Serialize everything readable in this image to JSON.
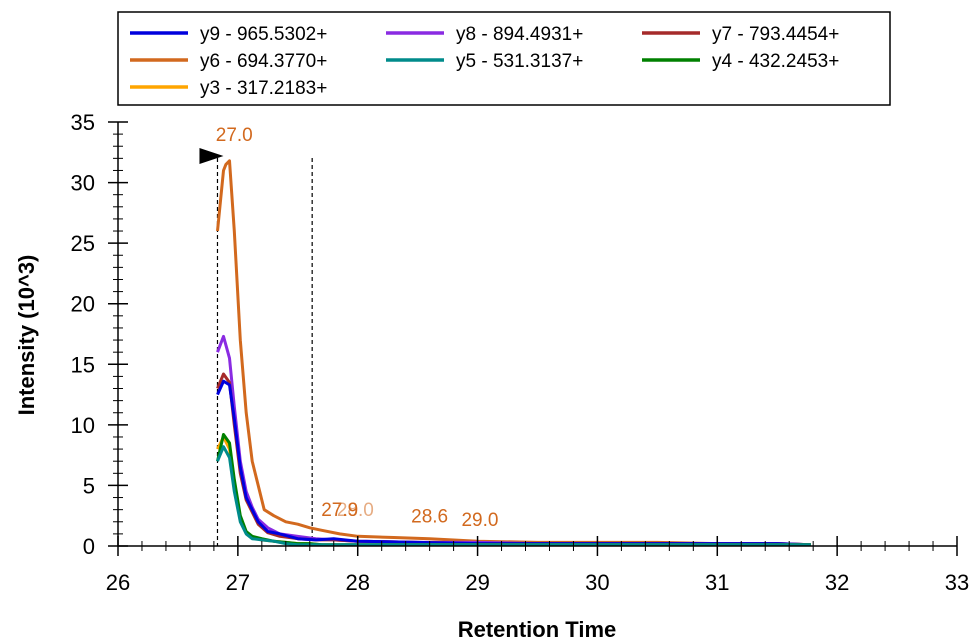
{
  "chart_data": {
    "type": "line",
    "xlabel": "Retention Time",
    "ylabel": "Intensity (10^3)",
    "xlim": [
      26,
      33
    ],
    "ylim": [
      0,
      35
    ],
    "x_ticks": [
      26,
      27,
      28,
      29,
      30,
      31,
      32,
      33
    ],
    "y_ticks": [
      0,
      5,
      10,
      15,
      20,
      25,
      30,
      35
    ],
    "grid": false,
    "legend_placement": "top",
    "boundaries": [
      26.83,
      27.62
    ],
    "peak_marker_rt": 26.83,
    "series": [
      {
        "name": "y9 - 965.5302+",
        "color": "#0000dd",
        "x": [
          26.83,
          26.88,
          26.93,
          26.97,
          27.02,
          27.07,
          27.12,
          27.17,
          27.25,
          27.35,
          27.5,
          27.65,
          27.8,
          28.0,
          28.5,
          29.0,
          29.5,
          30.0,
          30.5,
          31.0,
          31.5,
          31.78
        ],
        "y": [
          12.5,
          13.6,
          13.3,
          10.5,
          6.5,
          4.0,
          3.0,
          2.0,
          1.2,
          1.0,
          0.6,
          0.5,
          0.6,
          0.4,
          0.3,
          0.2,
          0.2,
          0.2,
          0.2,
          0.2,
          0.2,
          0.1
        ]
      },
      {
        "name": "y8 - 894.4931+",
        "color": "#8a2be2",
        "x": [
          26.83,
          26.88,
          26.93,
          26.97,
          27.02,
          27.07,
          27.12,
          27.17,
          27.25,
          27.35,
          27.5,
          27.65,
          27.8,
          28.0,
          28.5,
          29.0,
          29.5,
          30.0,
          30.5,
          31.0,
          31.5,
          31.78
        ],
        "y": [
          16.0,
          17.3,
          15.5,
          11.5,
          7.0,
          4.5,
          3.2,
          2.2,
          1.5,
          1.0,
          0.8,
          0.6,
          0.5,
          0.4,
          0.3,
          0.3,
          0.2,
          0.2,
          0.2,
          0.2,
          0.2,
          0.1
        ]
      },
      {
        "name": "y7 - 793.4454+",
        "color": "#a52a2a",
        "x": [
          26.83,
          26.88,
          26.93,
          26.97,
          27.02,
          27.07,
          27.12,
          27.17,
          27.25,
          27.35,
          27.5,
          27.65,
          27.8,
          28.0,
          28.5,
          29.0,
          29.5,
          30.0,
          30.5,
          31.0,
          31.5,
          31.78
        ],
        "y": [
          13.0,
          14.2,
          13.5,
          10.0,
          6.0,
          3.8,
          2.8,
          1.8,
          1.1,
          0.8,
          0.6,
          0.5,
          0.5,
          0.4,
          0.3,
          0.2,
          0.2,
          0.2,
          0.2,
          0.2,
          0.2,
          0.1
        ]
      },
      {
        "name": "y6 - 694.3770+",
        "color": "#d2691e",
        "x": [
          26.83,
          26.88,
          26.9,
          26.93,
          26.97,
          27.02,
          27.07,
          27.12,
          27.17,
          27.22,
          27.3,
          27.4,
          27.5,
          27.6,
          27.7,
          27.85,
          28.0,
          28.3,
          28.6,
          29.0,
          29.5,
          30.0,
          30.5,
          31.0,
          31.5,
          31.78
        ],
        "y": [
          26.0,
          31.0,
          31.5,
          31.8,
          26.0,
          17.0,
          11.0,
          7.0,
          5.0,
          3.0,
          2.5,
          2.0,
          1.8,
          1.5,
          1.3,
          1.0,
          0.8,
          0.7,
          0.6,
          0.4,
          0.3,
          0.3,
          0.3,
          0.2,
          0.2,
          0.1
        ]
      },
      {
        "name": "y5 - 531.3137+",
        "color": "#008b8b",
        "x": [
          26.83,
          26.88,
          26.93,
          26.97,
          27.02,
          27.07,
          27.12,
          27.2,
          27.3,
          27.4,
          27.5,
          27.6,
          27.7,
          27.8,
          28.0,
          28.5,
          29.0,
          29.5,
          30.0,
          30.5,
          31.0,
          31.5,
          31.78
        ],
        "y": [
          7.0,
          8.2,
          7.3,
          4.5,
          2.0,
          1.0,
          0.6,
          0.5,
          0.4,
          0.2,
          0.1,
          0.1,
          0.1,
          0.1,
          0.1,
          0.1,
          0.1,
          0.1,
          0.1,
          0.1,
          0.1,
          0.1,
          0.1
        ]
      },
      {
        "name": "y4 - 432.2453+",
        "color": "#008000",
        "x": [
          26.83,
          26.88,
          26.93,
          26.97,
          27.02,
          27.07,
          27.12,
          27.2,
          27.3,
          27.4,
          27.5,
          27.6,
          27.7,
          27.8,
          28.0,
          28.5,
          29.0,
          29.5,
          30.0,
          30.5,
          31.0,
          31.5,
          31.78
        ],
        "y": [
          7.0,
          9.2,
          8.5,
          5.5,
          2.5,
          1.2,
          0.8,
          0.6,
          0.4,
          0.3,
          0.2,
          0.2,
          0.1,
          0.1,
          0.1,
          0.1,
          0.1,
          0.1,
          0.1,
          0.1,
          0.1,
          0.1,
          0.1
        ]
      },
      {
        "name": "y3 - 317.2183+",
        "color": "#ffa500",
        "x": [
          26.83,
          26.88,
          26.93,
          26.97,
          27.02,
          27.07,
          27.12,
          27.2,
          27.3,
          27.4,
          27.5,
          27.6,
          27.7,
          27.8,
          28.0,
          28.5,
          29.0,
          29.5,
          30.0,
          30.5,
          31.0,
          31.5,
          31.78
        ],
        "y": [
          8.0,
          9.0,
          8.0,
          5.0,
          2.3,
          1.1,
          0.7,
          0.5,
          0.4,
          0.3,
          0.2,
          0.2,
          0.1,
          0.1,
          0.1,
          0.1,
          0.1,
          0.1,
          0.1,
          0.1,
          0.1,
          0.1,
          0.1
        ]
      }
    ],
    "annotations": [
      {
        "text": "27.0",
        "x": 26.97,
        "y": 31.8
      },
      {
        "text": "27.9",
        "x": 27.85,
        "y": 1.0
      },
      {
        "text": "28.0",
        "x": 27.98,
        "y": 1.0
      },
      {
        "text": "28.6",
        "x": 28.6,
        "y": 0.6
      },
      {
        "text": "29.0",
        "x": 29.02,
        "y": 0.5
      }
    ]
  }
}
